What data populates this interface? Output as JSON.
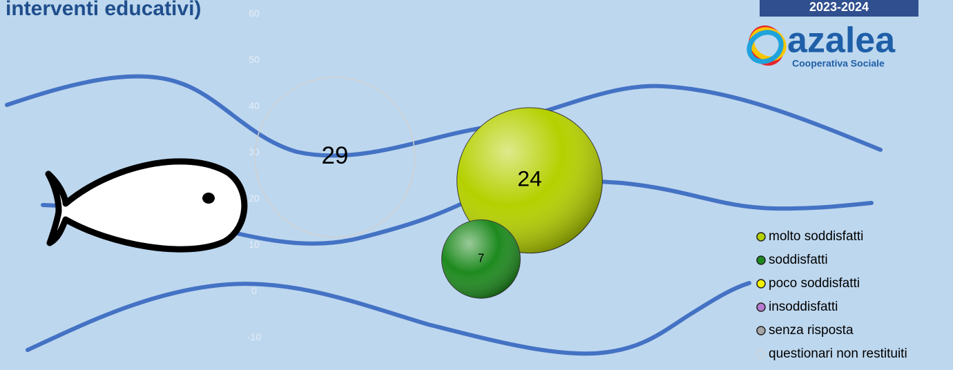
{
  "chart_data": {
    "type": "bubble",
    "title": "interventi educativi)",
    "badge": "2023-2024",
    "logo": {
      "name": "azalea",
      "subtitle": "Cooperativa Sociale"
    },
    "xlim": [
      0,
      6
    ],
    "ylim": [
      -17,
      63
    ],
    "yticks": [
      -10,
      0,
      10,
      20,
      30,
      40,
      50,
      60
    ],
    "series": [
      {
        "name": "molto soddisfatti",
        "color": "#b5d000",
        "x": 4,
        "y": 24,
        "size": 24,
        "style": "filled"
      },
      {
        "name": "soddisfatti",
        "color": "#1e8a1e",
        "x": 3.5,
        "y": 7,
        "size": 7,
        "style": "filled"
      },
      {
        "name": "poco soddisfatti",
        "color": "#f0f000",
        "x": null,
        "y": null,
        "size": null,
        "style": "filled"
      },
      {
        "name": "insoddisfatti",
        "color": "#b77ad0",
        "x": null,
        "y": null,
        "size": null,
        "style": "filled"
      },
      {
        "name": "senza risposta",
        "color": "#a6a6a6",
        "x": null,
        "y": null,
        "size": null,
        "style": "filled"
      },
      {
        "name": "questionari non restituiti",
        "color": "#d0d0d0",
        "x": 2,
        "y": 29,
        "size": 29,
        "style": "outline"
      }
    ]
  }
}
